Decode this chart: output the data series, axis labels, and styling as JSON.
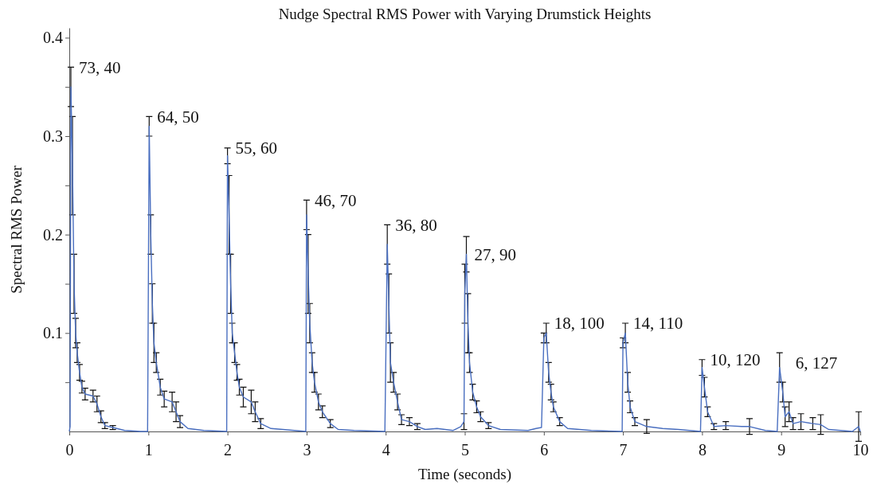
{
  "chart_data": {
    "type": "line",
    "title": "Nudge Spectral RMS Power with Varying Drumstick Heights",
    "xlabel": "Time (seconds)",
    "ylabel": "Spectral RMS Power",
    "xlim": [
      0,
      10
    ],
    "xticks": [
      0,
      1,
      2,
      3,
      4,
      5,
      6,
      7,
      8,
      9,
      10
    ],
    "ylim": [
      0,
      0.41
    ],
    "yticks": [
      {
        "value": 0.05,
        "label": null
      },
      0.1,
      {
        "value": 0.15,
        "label": null
      },
      0.2,
      {
        "value": 0.25,
        "label": null
      },
      0.3,
      {
        "value": 0.35,
        "label": null
      },
      0.4
    ],
    "grid": false,
    "marker": "none",
    "line_style": "solid",
    "series": [
      {
        "color": "#4a6fc0",
        "x": [
          0,
          0.01,
          0.02,
          0.04,
          0.06,
          0.08,
          0.1,
          0.13,
          0.16,
          0.2,
          0.3,
          0.35,
          0.4,
          0.45,
          0.55,
          0.7,
          0.9,
          0.99,
          1.01,
          1.03,
          1.05,
          1.07,
          1.1,
          1.15,
          1.2,
          1.3,
          1.35,
          1.4,
          1.5,
          1.7,
          1.99,
          2,
          2.02,
          2.04,
          2.06,
          2.09,
          2.12,
          2.15,
          2.2,
          2.3,
          2.35,
          2.42,
          2.55,
          2.7,
          2.99,
          3,
          3.02,
          3.04,
          3.07,
          3.1,
          3.15,
          3.2,
          3.3,
          3.4,
          3.6,
          3.99,
          4.02,
          4.04,
          4.06,
          4.1,
          4.15,
          4.2,
          4.3,
          4.4,
          4.5,
          4.65,
          4.85,
          4.95,
          4.99,
          5,
          5.02,
          5.04,
          5.06,
          5.1,
          5.15,
          5.2,
          5.3,
          5.45,
          5.8,
          5.9,
          5.97,
          6,
          6.03,
          6.06,
          6.09,
          6.12,
          6.2,
          6.3,
          6.6,
          6.99,
          7,
          7.03,
          7.06,
          7.09,
          7.15,
          7.3,
          7.5,
          7.7,
          7.98,
          8,
          8.03,
          8.07,
          8.15,
          8.3,
          8.5,
          8.6,
          8.8,
          8.95,
          8.98,
          9.02,
          9.05,
          9.1,
          9.15,
          9.25,
          9.4,
          9.5,
          9.6,
          9.9,
          9.98,
          10
        ],
        "values": [
          0,
          0.005,
          0.35,
          0.27,
          0.15,
          0.1,
          0.08,
          0.06,
          0.045,
          0.038,
          0.036,
          0.028,
          0.015,
          0.006,
          0.004,
          0.001,
          0,
          0,
          0.31,
          0.2,
          0.13,
          0.09,
          0.07,
          0.045,
          0.033,
          0.03,
          0.02,
          0.01,
          0.003,
          0.001,
          0,
          0.28,
          0.22,
          0.15,
          0.1,
          0.08,
          0.06,
          0.045,
          0.035,
          0.03,
          0.02,
          0.008,
          0.003,
          0.002,
          0,
          0.22,
          0.16,
          0.11,
          0.07,
          0.05,
          0.03,
          0.02,
          0.008,
          0.002,
          0.001,
          0,
          0.19,
          0.13,
          0.07,
          0.05,
          0.03,
          0.012,
          0.01,
          0.005,
          0.002,
          0.003,
          0.001,
          0.005,
          0.01,
          0.14,
          0.18,
          0.11,
          0.07,
          0.04,
          0.025,
          0.015,
          0.006,
          0.002,
          0.001,
          0.003,
          0.004,
          0.095,
          0.1,
          0.06,
          0.04,
          0.025,
          0.01,
          0.003,
          0.001,
          0,
          0.09,
          0.1,
          0.05,
          0.025,
          0.01,
          0.005,
          0.003,
          0.002,
          0,
          0.065,
          0.045,
          0.02,
          0.005,
          0.006,
          0.005,
          0.005,
          0.001,
          0,
          0.065,
          0.04,
          0.015,
          0.02,
          0.008,
          0.01,
          0.008,
          0.007,
          0.002,
          0,
          0.005,
          0
        ],
        "errors": [
          null,
          null,
          0.02,
          0.05,
          0.03,
          0.015,
          0.01,
          0.008,
          0.006,
          0.006,
          0.006,
          0.008,
          0.006,
          0.003,
          0.002,
          null,
          null,
          null,
          0.01,
          0.02,
          0.02,
          0.02,
          0.01,
          0.008,
          0.008,
          0.01,
          0.01,
          0.006,
          null,
          null,
          null,
          0.008,
          0.04,
          0.03,
          0.01,
          0.01,
          0.008,
          0.008,
          0.01,
          0.012,
          0.01,
          0.005,
          null,
          null,
          null,
          0.015,
          0.04,
          0.02,
          0.01,
          0.01,
          0.008,
          0.006,
          0.004,
          null,
          null,
          null,
          0.02,
          0.03,
          0.02,
          0.01,
          0.008,
          0.005,
          0.004,
          0.003,
          null,
          null,
          null,
          null,
          0.008,
          0.03,
          0.018,
          0.03,
          0.01,
          0.008,
          0.006,
          0.005,
          0.003,
          null,
          null,
          null,
          null,
          0.005,
          0.01,
          0.01,
          0.008,
          0.005,
          0.004,
          null,
          null,
          null,
          0.005,
          0.01,
          0.01,
          0.006,
          0.004,
          0.007,
          null,
          null,
          null,
          0.008,
          0.01,
          0.005,
          0.003,
          0.004,
          null,
          0.008,
          null,
          null,
          0.015,
          0.01,
          0.01,
          0.01,
          0.006,
          0.008,
          0.006,
          0.01,
          null,
          null,
          0.015,
          null
        ]
      }
    ],
    "annotations": [
      {
        "text": "73, 40",
        "x": 0.02,
        "y": 0.37
      },
      {
        "text": "64, 50",
        "x": 1.01,
        "y": 0.32
      },
      {
        "text": "55, 60",
        "x": 2,
        "y": 0.288
      },
      {
        "text": "46, 70",
        "x": 3,
        "y": 0.235
      },
      {
        "text": "36, 80",
        "x": 4.02,
        "y": 0.21
      },
      {
        "text": "27, 90",
        "x": 5.02,
        "y": 0.18
      },
      {
        "text": "18, 100",
        "x": 6.03,
        "y": 0.11
      },
      {
        "text": "14, 110",
        "x": 7.03,
        "y": 0.11
      },
      {
        "text": "10, 120",
        "x": 8,
        "y": 0.073
      },
      {
        "text": "6, 127",
        "x": 8.98,
        "y": 0.07
      }
    ]
  }
}
